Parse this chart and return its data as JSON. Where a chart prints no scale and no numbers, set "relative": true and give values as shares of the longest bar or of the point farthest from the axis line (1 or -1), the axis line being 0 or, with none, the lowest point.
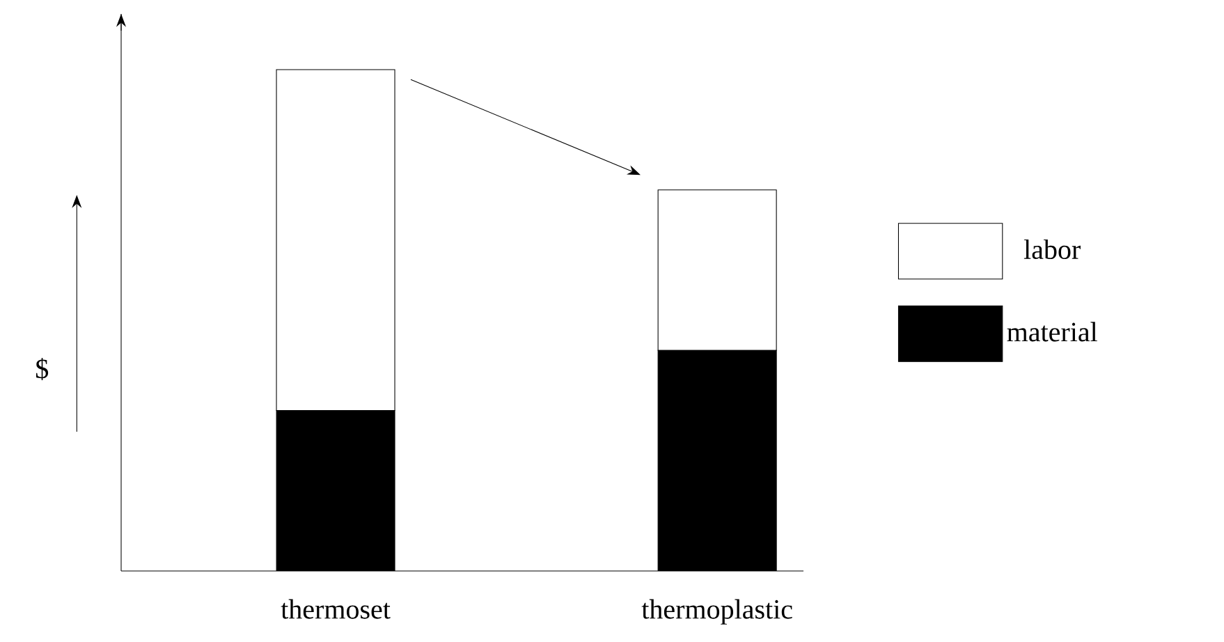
{
  "chart_data": {
    "type": "bar",
    "stacked": true,
    "relative": true,
    "ylabel": "$",
    "categories": [
      "thermoset",
      "thermoplastic"
    ],
    "series": [
      {
        "name": "material",
        "color": "#000000",
        "values": [
          0.32,
          0.44
        ]
      },
      {
        "name": "labor",
        "color": "#ffffff",
        "values": [
          0.68,
          0.32
        ]
      }
    ],
    "legend": "right"
  }
}
